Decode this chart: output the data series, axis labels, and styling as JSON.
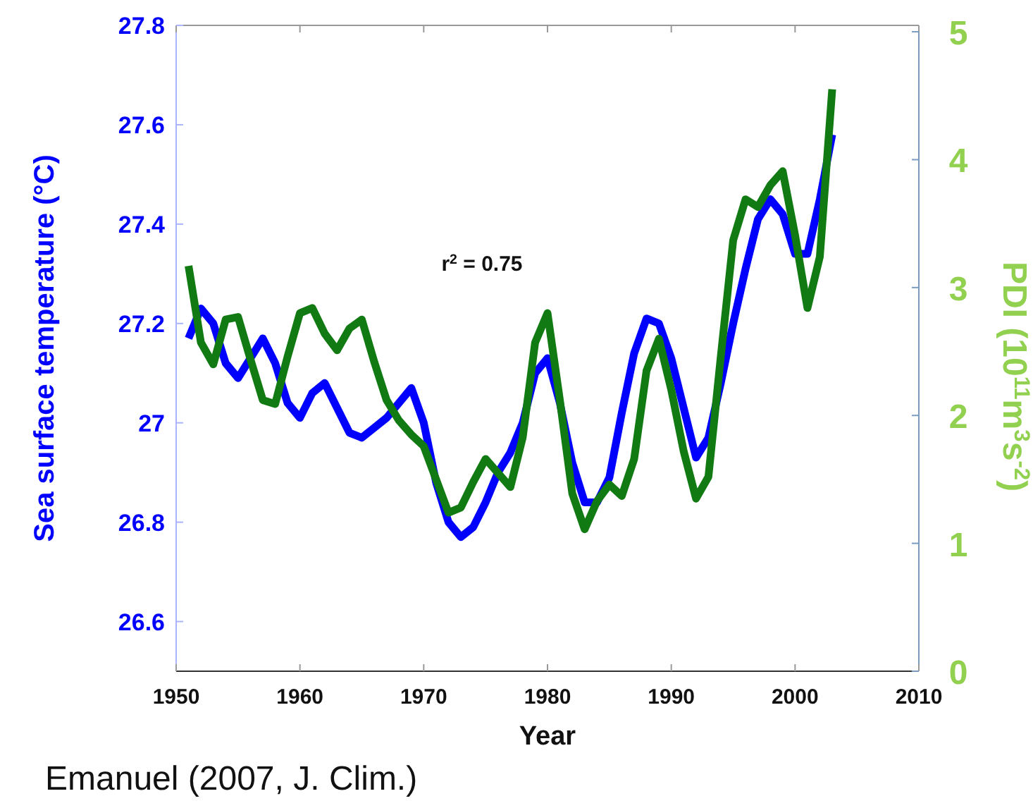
{
  "chart_data": {
    "type": "line",
    "ylabel": "Sea surface temperature (°C)",
    "y2label": "PDI (10$^{11}$m$^{3}$s$^{-2}$)",
    "xlabel": "Year",
    "annotations": [
      "r$^{2}$ = 0.75",
      "Emanuel (2007, J. Clim.)"
    ],
    "x": [
      1951,
      1952,
      1953,
      1954,
      1955,
      1956,
      1957,
      1958,
      1959,
      1960,
      1961,
      1962,
      1963,
      1964,
      1965,
      1966,
      1967,
      1968,
      1969,
      1970,
      1971,
      1972,
      1973,
      1974,
      1975,
      1976,
      1977,
      1978,
      1979,
      1980,
      1981,
      1982,
      1983,
      1984,
      1985,
      1986,
      1987,
      1988,
      1989,
      1990,
      1991,
      1992,
      1993,
      1994,
      1995,
      1996,
      1997,
      1998,
      1999,
      2000,
      2001,
      2002,
      2003
    ],
    "xlim": [
      1950,
      2010
    ],
    "xticks": [
      1950,
      1960,
      1970,
      1980,
      1990,
      2000,
      2010
    ],
    "ylim": [
      26.5,
      27.8
    ],
    "yticks": [
      26.6,
      26.8,
      27,
      27.2,
      27.4,
      27.6,
      27.8
    ],
    "y2lim": [
      0,
      5.05
    ],
    "y2ticks": [
      0,
      1,
      2,
      3,
      4,
      5
    ],
    "grid": false,
    "marker": "none",
    "line_style": "solid",
    "series": [
      {
        "color": "#0000ff",
        "values": [
          27.17,
          27.23,
          27.2,
          27.12,
          27.09,
          27.13,
          27.17,
          27.12,
          27.04,
          27.01,
          27.06,
          27.08,
          27.03,
          26.98,
          26.97,
          26.99,
          27.01,
          27.04,
          27.07,
          27.0,
          26.88,
          26.8,
          26.77,
          26.79,
          26.84,
          26.9,
          26.94,
          27.0,
          27.1,
          27.13,
          27.04,
          26.92,
          26.84,
          26.84,
          26.89,
          27.02,
          27.14,
          27.21,
          27.2,
          27.13,
          27.03,
          26.93,
          26.97,
          27.08,
          27.2,
          27.31,
          27.41,
          27.45,
          27.42,
          27.34,
          27.34,
          27.45,
          27.58
        ]
      },
      {
        "color": "#127a12",
        "axis": "y2",
        "values": [
          3.17,
          2.57,
          2.4,
          2.75,
          2.77,
          2.44,
          2.12,
          2.09,
          2.46,
          2.8,
          2.84,
          2.64,
          2.51,
          2.68,
          2.75,
          2.42,
          2.12,
          1.96,
          1.85,
          1.76,
          1.5,
          1.24,
          1.28,
          1.48,
          1.66,
          1.55,
          1.44,
          1.83,
          2.57,
          2.8,
          2.12,
          1.39,
          1.11,
          1.33,
          1.46,
          1.37,
          1.66,
          2.35,
          2.6,
          2.2,
          1.72,
          1.35,
          1.52,
          2.46,
          3.37,
          3.69,
          3.63,
          3.8,
          3.91,
          3.41,
          2.84,
          3.24,
          4.55
        ]
      }
    ]
  }
}
